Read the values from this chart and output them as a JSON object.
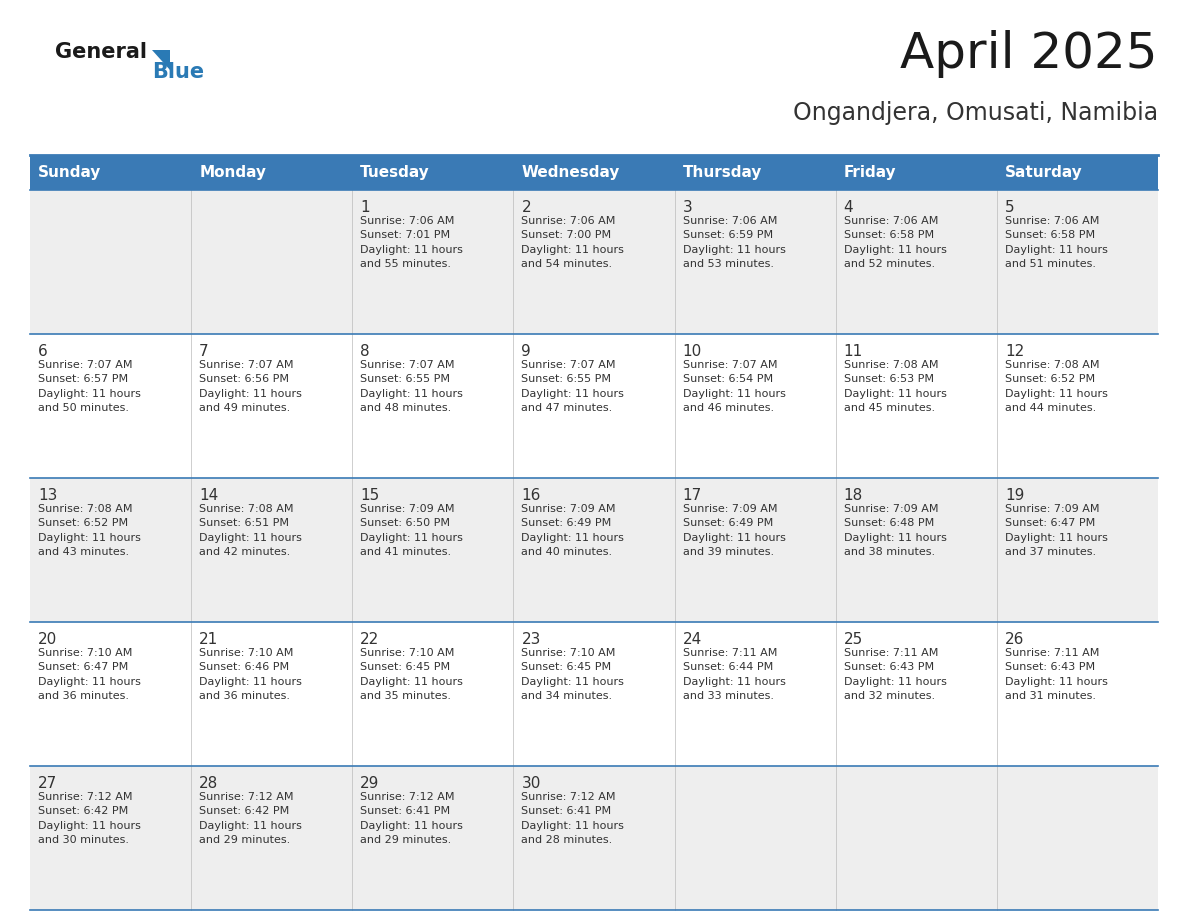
{
  "title": "April 2025",
  "subtitle": "Ongandjera, Omusati, Namibia",
  "header_bg": "#3a7ab5",
  "header_text_color": "#ffffff",
  "day_names": [
    "Sunday",
    "Monday",
    "Tuesday",
    "Wednesday",
    "Thursday",
    "Friday",
    "Saturday"
  ],
  "title_font_size": 36,
  "subtitle_font_size": 17,
  "cell_bg_light": "#eeeeee",
  "cell_bg_white": "#ffffff",
  "border_color": "#3a7ab5",
  "text_color": "#333333",
  "num_font_size": 11,
  "info_font_size": 8,
  "header_font_size": 11,
  "weeks": [
    [
      {
        "day": null,
        "info": null
      },
      {
        "day": null,
        "info": null
      },
      {
        "day": 1,
        "info": "Sunrise: 7:06 AM\nSunset: 7:01 PM\nDaylight: 11 hours\nand 55 minutes."
      },
      {
        "day": 2,
        "info": "Sunrise: 7:06 AM\nSunset: 7:00 PM\nDaylight: 11 hours\nand 54 minutes."
      },
      {
        "day": 3,
        "info": "Sunrise: 7:06 AM\nSunset: 6:59 PM\nDaylight: 11 hours\nand 53 minutes."
      },
      {
        "day": 4,
        "info": "Sunrise: 7:06 AM\nSunset: 6:58 PM\nDaylight: 11 hours\nand 52 minutes."
      },
      {
        "day": 5,
        "info": "Sunrise: 7:06 AM\nSunset: 6:58 PM\nDaylight: 11 hours\nand 51 minutes."
      }
    ],
    [
      {
        "day": 6,
        "info": "Sunrise: 7:07 AM\nSunset: 6:57 PM\nDaylight: 11 hours\nand 50 minutes."
      },
      {
        "day": 7,
        "info": "Sunrise: 7:07 AM\nSunset: 6:56 PM\nDaylight: 11 hours\nand 49 minutes."
      },
      {
        "day": 8,
        "info": "Sunrise: 7:07 AM\nSunset: 6:55 PM\nDaylight: 11 hours\nand 48 minutes."
      },
      {
        "day": 9,
        "info": "Sunrise: 7:07 AM\nSunset: 6:55 PM\nDaylight: 11 hours\nand 47 minutes."
      },
      {
        "day": 10,
        "info": "Sunrise: 7:07 AM\nSunset: 6:54 PM\nDaylight: 11 hours\nand 46 minutes."
      },
      {
        "day": 11,
        "info": "Sunrise: 7:08 AM\nSunset: 6:53 PM\nDaylight: 11 hours\nand 45 minutes."
      },
      {
        "day": 12,
        "info": "Sunrise: 7:08 AM\nSunset: 6:52 PM\nDaylight: 11 hours\nand 44 minutes."
      }
    ],
    [
      {
        "day": 13,
        "info": "Sunrise: 7:08 AM\nSunset: 6:52 PM\nDaylight: 11 hours\nand 43 minutes."
      },
      {
        "day": 14,
        "info": "Sunrise: 7:08 AM\nSunset: 6:51 PM\nDaylight: 11 hours\nand 42 minutes."
      },
      {
        "day": 15,
        "info": "Sunrise: 7:09 AM\nSunset: 6:50 PM\nDaylight: 11 hours\nand 41 minutes."
      },
      {
        "day": 16,
        "info": "Sunrise: 7:09 AM\nSunset: 6:49 PM\nDaylight: 11 hours\nand 40 minutes."
      },
      {
        "day": 17,
        "info": "Sunrise: 7:09 AM\nSunset: 6:49 PM\nDaylight: 11 hours\nand 39 minutes."
      },
      {
        "day": 18,
        "info": "Sunrise: 7:09 AM\nSunset: 6:48 PM\nDaylight: 11 hours\nand 38 minutes."
      },
      {
        "day": 19,
        "info": "Sunrise: 7:09 AM\nSunset: 6:47 PM\nDaylight: 11 hours\nand 37 minutes."
      }
    ],
    [
      {
        "day": 20,
        "info": "Sunrise: 7:10 AM\nSunset: 6:47 PM\nDaylight: 11 hours\nand 36 minutes."
      },
      {
        "day": 21,
        "info": "Sunrise: 7:10 AM\nSunset: 6:46 PM\nDaylight: 11 hours\nand 36 minutes."
      },
      {
        "day": 22,
        "info": "Sunrise: 7:10 AM\nSunset: 6:45 PM\nDaylight: 11 hours\nand 35 minutes."
      },
      {
        "day": 23,
        "info": "Sunrise: 7:10 AM\nSunset: 6:45 PM\nDaylight: 11 hours\nand 34 minutes."
      },
      {
        "day": 24,
        "info": "Sunrise: 7:11 AM\nSunset: 6:44 PM\nDaylight: 11 hours\nand 33 minutes."
      },
      {
        "day": 25,
        "info": "Sunrise: 7:11 AM\nSunset: 6:43 PM\nDaylight: 11 hours\nand 32 minutes."
      },
      {
        "day": 26,
        "info": "Sunrise: 7:11 AM\nSunset: 6:43 PM\nDaylight: 11 hours\nand 31 minutes."
      }
    ],
    [
      {
        "day": 27,
        "info": "Sunrise: 7:12 AM\nSunset: 6:42 PM\nDaylight: 11 hours\nand 30 minutes."
      },
      {
        "day": 28,
        "info": "Sunrise: 7:12 AM\nSunset: 6:42 PM\nDaylight: 11 hours\nand 29 minutes."
      },
      {
        "day": 29,
        "info": "Sunrise: 7:12 AM\nSunset: 6:41 PM\nDaylight: 11 hours\nand 29 minutes."
      },
      {
        "day": 30,
        "info": "Sunrise: 7:12 AM\nSunset: 6:41 PM\nDaylight: 11 hours\nand 28 minutes."
      },
      {
        "day": null,
        "info": null
      },
      {
        "day": null,
        "info": null
      },
      {
        "day": null,
        "info": null
      }
    ]
  ]
}
